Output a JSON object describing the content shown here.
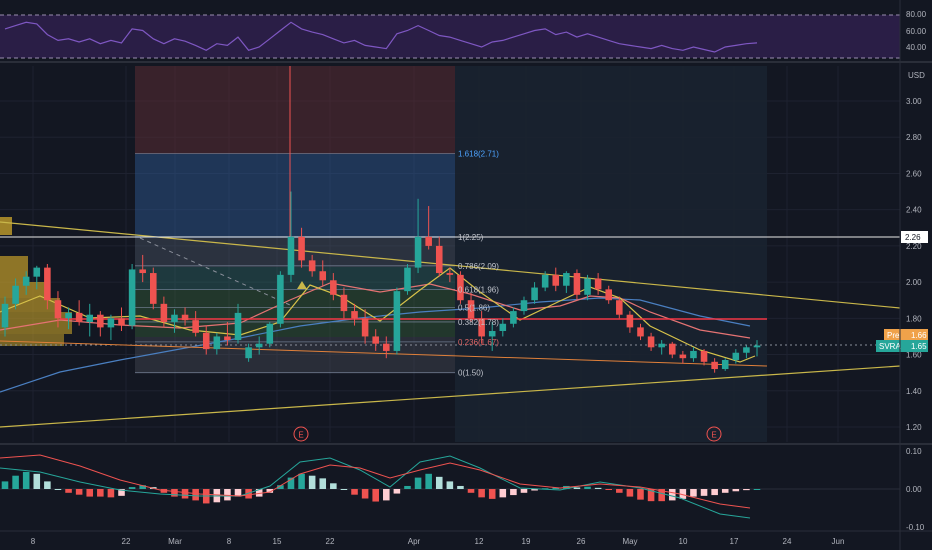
{
  "colors": {
    "background": "#131722",
    "up": "#26a69a",
    "down": "#ef5350",
    "grid": "#1e2230",
    "axis_text": "#b2b5be",
    "rsi": "#7e57c2",
    "fib": "#4da3ff",
    "trend": "#c9b74a",
    "ma_short": "#d7c24a",
    "ma_mid": "#e57373",
    "ma_long": "#4a7fc1",
    "red_line": "#f23645"
  },
  "rsi_panel": {
    "ticks": [
      "80.00",
      "60.00",
      "40.00"
    ]
  },
  "main_panel": {
    "currency": "USD",
    "price_ticks": [
      "3.00",
      "2.80",
      "2.60",
      "2.40",
      "2.20",
      "2.00",
      "1.80",
      "1.60",
      "1.40",
      "1.20"
    ],
    "price_tag_level": "2.26",
    "pre_label": "Pre",
    "pre_value": "1.66",
    "symbol": "SVRA",
    "last_value": "1.65",
    "fib_labels": [
      "1.618(2.71)",
      "1(2.25)",
      "0.786(2.09)",
      "0.618(1.96)",
      "0.5(1.86)",
      "0.382(1.78)",
      "0.236(1.67)",
      "0(1.50)"
    ],
    "earnings_label": "E"
  },
  "macd_panel": {
    "ticks": [
      "0.10",
      "0.00",
      "-0.10"
    ]
  },
  "x_axis": {
    "labels": [
      "8",
      "22",
      "Mar",
      "8",
      "15",
      "22",
      "Apr",
      "12",
      "19",
      "26",
      "May",
      "10",
      "17",
      "24",
      "Jun"
    ]
  },
  "chart_data": {
    "type": "candlestick",
    "ylim": [
      1.15,
      3.15
    ],
    "candles": [
      [
        1.75,
        1.92,
        1.7,
        1.88
      ],
      [
        1.88,
        2.02,
        1.85,
        1.98
      ],
      [
        1.98,
        2.06,
        1.93,
        2.03
      ],
      [
        2.03,
        2.09,
        1.96,
        2.08
      ],
      [
        2.08,
        2.1,
        1.85,
        1.9
      ],
      [
        1.9,
        1.95,
        1.75,
        1.8
      ],
      [
        1.8,
        1.86,
        1.74,
        1.83
      ],
      [
        1.83,
        1.9,
        1.76,
        1.78
      ],
      [
        1.78,
        1.88,
        1.7,
        1.82
      ],
      [
        1.82,
        1.84,
        1.7,
        1.75
      ],
      [
        1.75,
        1.82,
        1.68,
        1.8
      ],
      [
        1.8,
        1.86,
        1.73,
        1.76
      ],
      [
        1.76,
        2.1,
        1.74,
        2.07
      ],
      [
        2.07,
        2.15,
        2.0,
        2.05
      ],
      [
        2.05,
        2.08,
        1.85,
        1.88
      ],
      [
        1.88,
        1.92,
        1.75,
        1.78
      ],
      [
        1.78,
        1.85,
        1.72,
        1.82
      ],
      [
        1.82,
        1.86,
        1.76,
        1.79
      ],
      [
        1.79,
        1.84,
        1.7,
        1.72
      ],
      [
        1.72,
        1.76,
        1.6,
        1.63
      ],
      [
        1.63,
        1.72,
        1.6,
        1.7
      ],
      [
        1.7,
        1.78,
        1.65,
        1.68
      ],
      [
        1.68,
        1.88,
        1.66,
        1.83
      ],
      [
        1.58,
        1.66,
        1.56,
        1.64
      ],
      [
        1.64,
        1.7,
        1.6,
        1.66
      ],
      [
        1.66,
        1.78,
        1.64,
        1.77
      ],
      [
        1.77,
        2.06,
        1.75,
        2.04
      ],
      [
        2.04,
        2.5,
        2.0,
        2.25
      ],
      [
        2.25,
        2.3,
        2.08,
        2.12
      ],
      [
        2.12,
        2.15,
        2.03,
        2.06
      ],
      [
        2.06,
        2.12,
        1.98,
        2.01
      ],
      [
        2.01,
        2.05,
        1.9,
        1.93
      ],
      [
        1.93,
        1.97,
        1.8,
        1.84
      ],
      [
        1.84,
        1.88,
        1.76,
        1.8
      ],
      [
        1.8,
        1.85,
        1.66,
        1.7
      ],
      [
        1.7,
        1.74,
        1.62,
        1.66
      ],
      [
        1.66,
        1.7,
        1.58,
        1.62
      ],
      [
        1.62,
        1.97,
        1.6,
        1.95
      ],
      [
        1.95,
        2.1,
        1.93,
        2.08
      ],
      [
        2.08,
        2.46,
        2.05,
        2.25
      ],
      [
        2.25,
        2.42,
        2.18,
        2.2
      ],
      [
        2.2,
        2.25,
        2.03,
        2.05
      ],
      [
        2.05,
        2.08,
        2.0,
        2.04
      ],
      [
        2.04,
        2.06,
        1.88,
        1.9
      ],
      [
        1.9,
        1.94,
        1.78,
        1.8
      ],
      [
        1.8,
        1.84,
        1.66,
        1.7
      ],
      [
        1.7,
        1.78,
        1.62,
        1.73
      ],
      [
        1.73,
        1.8,
        1.7,
        1.77
      ],
      [
        1.77,
        1.86,
        1.75,
        1.84
      ],
      [
        1.84,
        1.92,
        1.82,
        1.9
      ],
      [
        1.9,
        2.0,
        1.88,
        1.97
      ],
      [
        1.97,
        2.06,
        1.95,
        2.04
      ],
      [
        2.04,
        2.08,
        1.95,
        1.98
      ],
      [
        1.98,
        2.06,
        1.94,
        2.05
      ],
      [
        2.05,
        2.07,
        1.9,
        1.93
      ],
      [
        1.93,
        2.04,
        1.9,
        2.02
      ],
      [
        2.02,
        2.05,
        1.93,
        1.96
      ],
      [
        1.96,
        1.98,
        1.88,
        1.9
      ],
      [
        1.9,
        1.92,
        1.8,
        1.82
      ],
      [
        1.82,
        1.84,
        1.72,
        1.75
      ],
      [
        1.75,
        1.77,
        1.68,
        1.7
      ],
      [
        1.7,
        1.72,
        1.62,
        1.64
      ],
      [
        1.64,
        1.68,
        1.6,
        1.66
      ],
      [
        1.66,
        1.67,
        1.58,
        1.6
      ],
      [
        1.6,
        1.62,
        1.55,
        1.58
      ],
      [
        1.58,
        1.64,
        1.56,
        1.62
      ],
      [
        1.62,
        1.63,
        1.54,
        1.56
      ],
      [
        1.56,
        1.58,
        1.5,
        1.52
      ],
      [
        1.52,
        1.58,
        1.51,
        1.57
      ],
      [
        1.57,
        1.63,
        1.55,
        1.61
      ],
      [
        1.61,
        1.65,
        1.58,
        1.64
      ],
      [
        1.64,
        1.68,
        1.59,
        1.65
      ]
    ],
    "fib_levels": [
      {
        "ratio": "1.618",
        "price": 2.71
      },
      {
        "ratio": "1",
        "price": 2.25
      },
      {
        "ratio": "0.786",
        "price": 2.09
      },
      {
        "ratio": "0.618",
        "price": 1.96
      },
      {
        "ratio": "0.5",
        "price": 1.86
      },
      {
        "ratio": "0.382",
        "price": 1.78
      },
      {
        "ratio": "0.236",
        "price": 1.67
      },
      {
        "ratio": "0",
        "price": 1.5
      }
    ],
    "horizontal_levels": [
      2.26,
      1.8
    ],
    "rsi": [
      62,
      66,
      70,
      68,
      55,
      48,
      50,
      46,
      50,
      44,
      48,
      45,
      62,
      60,
      50,
      44,
      50,
      47,
      42,
      36,
      44,
      42,
      52,
      36,
      40,
      50,
      60,
      70,
      62,
      58,
      55,
      50,
      45,
      48,
      42,
      40,
      38,
      56,
      60,
      66,
      60,
      54,
      52,
      48,
      44,
      40,
      46,
      48,
      52,
      56,
      60,
      62,
      55,
      58,
      52,
      56,
      52,
      48,
      44,
      42,
      40,
      38,
      42,
      38,
      36,
      40,
      37,
      34,
      40,
      42,
      44,
      45
    ],
    "rsi_ylim": [
      25,
      90
    ],
    "macd_hist": [
      0.02,
      0.035,
      0.045,
      0.04,
      0.02,
      0.0,
      -0.01,
      -0.015,
      -0.02,
      -0.02,
      -0.022,
      -0.018,
      0.005,
      0.01,
      0.005,
      -0.01,
      -0.02,
      -0.025,
      -0.03,
      -0.038,
      -0.035,
      -0.03,
      -0.02,
      -0.025,
      -0.02,
      -0.01,
      0.01,
      0.03,
      0.04,
      0.035,
      0.028,
      0.015,
      0.0,
      -0.015,
      -0.025,
      -0.033,
      -0.03,
      -0.012,
      0.008,
      0.03,
      0.04,
      0.032,
      0.02,
      0.008,
      -0.01,
      -0.022,
      -0.026,
      -0.022,
      -0.016,
      -0.01,
      -0.004,
      0.002,
      0.004,
      0.008,
      0.004,
      0.006,
      0.003,
      -0.002,
      -0.01,
      -0.02,
      -0.028,
      -0.032,
      -0.032,
      -0.03,
      -0.026,
      -0.02,
      -0.018,
      -0.016,
      -0.01,
      -0.006,
      -0.003,
      0.0
    ],
    "macd_ylim": [
      -0.12,
      0.12
    ]
  }
}
